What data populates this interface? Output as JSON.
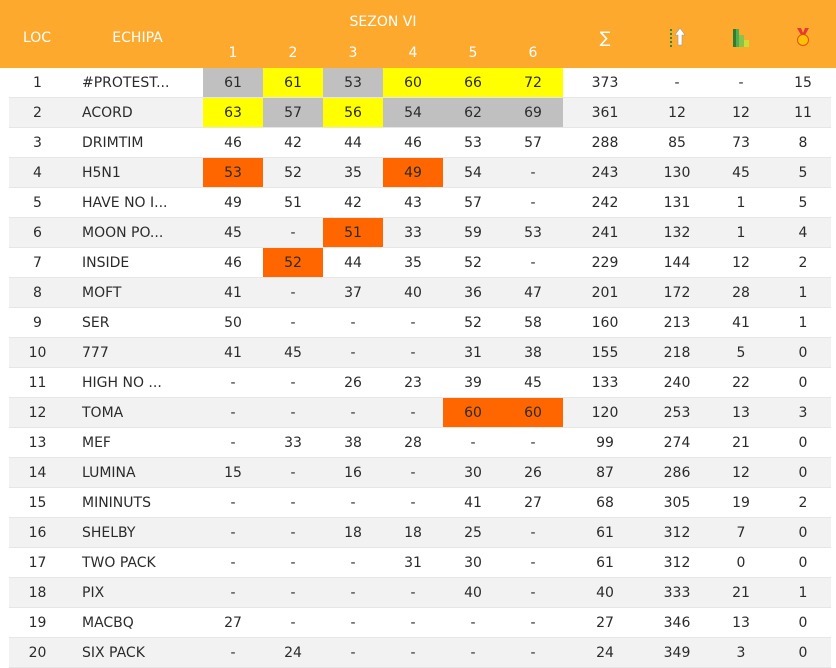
{
  "header": {
    "loc": "LOC",
    "echipa": "ECHIPA",
    "sezon": "SEZON VI",
    "rounds": [
      "1",
      "2",
      "3",
      "4",
      "5",
      "6"
    ],
    "sum": "∑"
  },
  "icons": [
    "points-up-icon",
    "stairs-icon",
    "medal-icon"
  ],
  "colors": {
    "header": "#fca92e",
    "gray": "#c0c0c0",
    "yellow": "#ffff00",
    "orange": "#ff6600"
  },
  "rows": [
    {
      "loc": "1",
      "team": "#PROTEST...",
      "r": [
        "61",
        "61",
        "53",
        "60",
        "66",
        "72"
      ],
      "hl": [
        "gray",
        "yellow",
        "gray",
        "yellow",
        "yellow",
        "yellow"
      ],
      "sum": "373",
      "c2": "-",
      "c3": "-",
      "c4": "15"
    },
    {
      "loc": "2",
      "team": "ACORD",
      "r": [
        "63",
        "57",
        "56",
        "54",
        "62",
        "69"
      ],
      "hl": [
        "yellow",
        "gray",
        "yellow",
        "gray",
        "gray",
        "gray"
      ],
      "sum": "361",
      "c2": "12",
      "c3": "12",
      "c4": "11"
    },
    {
      "loc": "3",
      "team": "DRIMTIM",
      "r": [
        "46",
        "42",
        "44",
        "46",
        "53",
        "57"
      ],
      "hl": [
        "",
        "",
        "",
        "",
        "",
        ""
      ],
      "sum": "288",
      "c2": "85",
      "c3": "73",
      "c4": "8"
    },
    {
      "loc": "4",
      "team": "H5N1",
      "r": [
        "53",
        "52",
        "35",
        "49",
        "54",
        "-"
      ],
      "hl": [
        "orange",
        "",
        "",
        "orange",
        "",
        ""
      ],
      "sum": "243",
      "c2": "130",
      "c3": "45",
      "c4": "5"
    },
    {
      "loc": "5",
      "team": "HAVE NO I...",
      "r": [
        "49",
        "51",
        "42",
        "43",
        "57",
        "-"
      ],
      "hl": [
        "",
        "",
        "",
        "",
        "",
        ""
      ],
      "sum": "242",
      "c2": "131",
      "c3": "1",
      "c4": "5"
    },
    {
      "loc": "6",
      "team": "MOON PO...",
      "r": [
        "45",
        "-",
        "51",
        "33",
        "59",
        "53"
      ],
      "hl": [
        "",
        "",
        "orange",
        "",
        "",
        ""
      ],
      "sum": "241",
      "c2": "132",
      "c3": "1",
      "c4": "4"
    },
    {
      "loc": "7",
      "team": "INSIDE",
      "r": [
        "46",
        "52",
        "44",
        "35",
        "52",
        "-"
      ],
      "hl": [
        "",
        "orange",
        "",
        "",
        "",
        ""
      ],
      "sum": "229",
      "c2": "144",
      "c3": "12",
      "c4": "2"
    },
    {
      "loc": "8",
      "team": "MOFT",
      "r": [
        "41",
        "-",
        "37",
        "40",
        "36",
        "47"
      ],
      "hl": [
        "",
        "",
        "",
        "",
        "",
        ""
      ],
      "sum": "201",
      "c2": "172",
      "c3": "28",
      "c4": "1"
    },
    {
      "loc": "9",
      "team": "SER",
      "r": [
        "50",
        "-",
        "-",
        "-",
        "52",
        "58"
      ],
      "hl": [
        "",
        "",
        "",
        "",
        "",
        ""
      ],
      "sum": "160",
      "c2": "213",
      "c3": "41",
      "c4": "1"
    },
    {
      "loc": "10",
      "team": "777",
      "r": [
        "41",
        "45",
        "-",
        "-",
        "31",
        "38"
      ],
      "hl": [
        "",
        "",
        "",
        "",
        "",
        ""
      ],
      "sum": "155",
      "c2": "218",
      "c3": "5",
      "c4": "0"
    },
    {
      "loc": "11",
      "team": "HIGH NO ...",
      "r": [
        "-",
        "-",
        "26",
        "23",
        "39",
        "45"
      ],
      "hl": [
        "",
        "",
        "",
        "",
        "",
        ""
      ],
      "sum": "133",
      "c2": "240",
      "c3": "22",
      "c4": "0"
    },
    {
      "loc": "12",
      "team": "TOMA",
      "r": [
        "-",
        "-",
        "-",
        "-",
        "60",
        "60"
      ],
      "hl": [
        "",
        "",
        "",
        "",
        "orange",
        "orange"
      ],
      "sum": "120",
      "c2": "253",
      "c3": "13",
      "c4": "3"
    },
    {
      "loc": "13",
      "team": "MEF",
      "r": [
        "-",
        "33",
        "38",
        "28",
        "-",
        "-"
      ],
      "hl": [
        "",
        "",
        "",
        "",
        "",
        ""
      ],
      "sum": "99",
      "c2": "274",
      "c3": "21",
      "c4": "0"
    },
    {
      "loc": "14",
      "team": "LUMINA",
      "r": [
        "15",
        "-",
        "16",
        "-",
        "30",
        "26"
      ],
      "hl": [
        "",
        "",
        "",
        "",
        "",
        ""
      ],
      "sum": "87",
      "c2": "286",
      "c3": "12",
      "c4": "0"
    },
    {
      "loc": "15",
      "team": "MININUTS",
      "r": [
        "-",
        "-",
        "-",
        "-",
        "41",
        "27"
      ],
      "hl": [
        "",
        "",
        "",
        "",
        "",
        ""
      ],
      "sum": "68",
      "c2": "305",
      "c3": "19",
      "c4": "2"
    },
    {
      "loc": "16",
      "team": "SHELBY",
      "r": [
        "-",
        "-",
        "18",
        "18",
        "25",
        "-"
      ],
      "hl": [
        "",
        "",
        "",
        "",
        "",
        ""
      ],
      "sum": "61",
      "c2": "312",
      "c3": "7",
      "c4": "0"
    },
    {
      "loc": "17",
      "team": "TWO PACK",
      "r": [
        "-",
        "-",
        "-",
        "31",
        "30",
        "-"
      ],
      "hl": [
        "",
        "",
        "",
        "",
        "",
        ""
      ],
      "sum": "61",
      "c2": "312",
      "c3": "0",
      "c4": "0"
    },
    {
      "loc": "18",
      "team": "PIX",
      "r": [
        "-",
        "-",
        "-",
        "-",
        "40",
        "-"
      ],
      "hl": [
        "",
        "",
        "",
        "",
        "",
        ""
      ],
      "sum": "40",
      "c2": "333",
      "c3": "21",
      "c4": "1"
    },
    {
      "loc": "19",
      "team": "MACBQ",
      "r": [
        "27",
        "-",
        "-",
        "-",
        "-",
        "-"
      ],
      "hl": [
        "",
        "",
        "",
        "",
        "",
        ""
      ],
      "sum": "27",
      "c2": "346",
      "c3": "13",
      "c4": "0"
    },
    {
      "loc": "20",
      "team": "SIX PACK",
      "r": [
        "-",
        "24",
        "-",
        "-",
        "-",
        "-"
      ],
      "hl": [
        "",
        "",
        "",
        "",
        "",
        ""
      ],
      "sum": "24",
      "c2": "349",
      "c3": "3",
      "c4": "0"
    }
  ]
}
